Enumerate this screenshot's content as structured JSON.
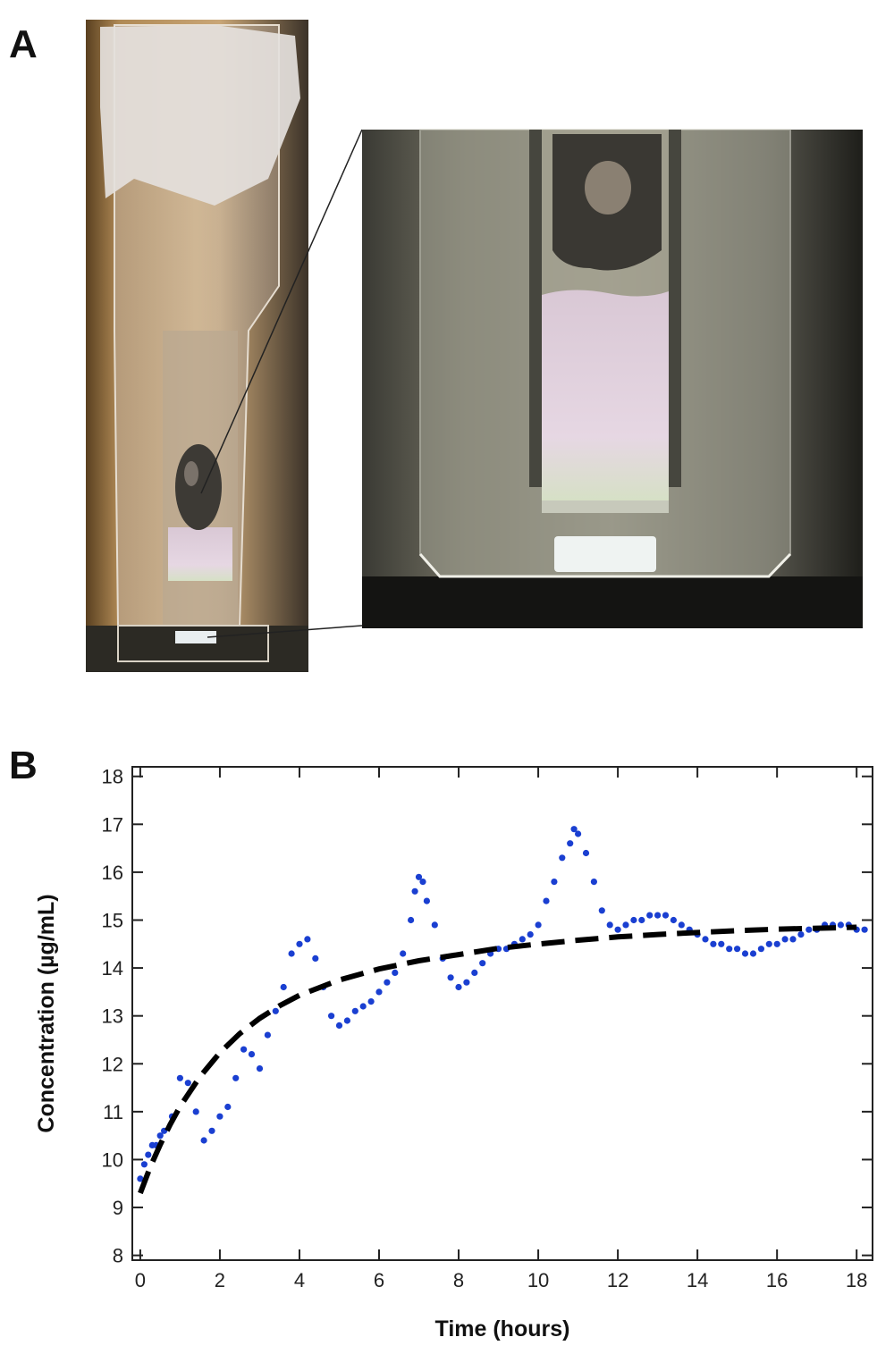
{
  "figure": {
    "panel_a_label": "A",
    "panel_b_label": "B"
  },
  "colors": {
    "point": "#1a3fd1",
    "fit": "#000000",
    "solution_tint": "#e8d6e4"
  },
  "chart_data": {
    "type": "scatter",
    "title": "",
    "xlabel": "Time (hours)",
    "ylabel": "Concentration (µg/mL)",
    "xlim": [
      -0.2,
      18.4
    ],
    "ylim": [
      7.9,
      18.2
    ],
    "xticks": [
      0,
      2,
      4,
      6,
      8,
      10,
      12,
      14,
      16,
      18
    ],
    "yticks": [
      8,
      9,
      10,
      11,
      12,
      13,
      14,
      15,
      16,
      17,
      18
    ],
    "grid": false,
    "legend": "none",
    "series": [
      {
        "kind": "points",
        "x": [
          0.0,
          0.1,
          0.2,
          0.3,
          0.4,
          0.5,
          0.6,
          0.8,
          1.0,
          1.2,
          1.4,
          1.6,
          1.8,
          2.0,
          2.2,
          2.4,
          2.6,
          2.8,
          3.0,
          3.2,
          3.4,
          3.6,
          3.8,
          4.0,
          4.2,
          4.4,
          4.6,
          4.8,
          5.0,
          5.2,
          5.4,
          5.6,
          5.8,
          6.0,
          6.2,
          6.4,
          6.6,
          6.8,
          6.9,
          7.0,
          7.1,
          7.2,
          7.4,
          7.6,
          7.8,
          8.0,
          8.2,
          8.4,
          8.6,
          8.8,
          9.0,
          9.2,
          9.4,
          9.6,
          9.8,
          10.0,
          10.2,
          10.4,
          10.6,
          10.8,
          10.9,
          11.0,
          11.2,
          11.4,
          11.6,
          11.8,
          12.0,
          12.2,
          12.4,
          12.6,
          12.8,
          13.0,
          13.2,
          13.4,
          13.6,
          13.8,
          14.0,
          14.2,
          14.4,
          14.6,
          14.8,
          15.0,
          15.2,
          15.4,
          15.6,
          15.8,
          16.0,
          16.2,
          16.4,
          16.6,
          16.8,
          17.0,
          17.2,
          17.4,
          17.6,
          17.8,
          18.0,
          18.2
        ],
        "y": [
          9.6,
          9.9,
          10.1,
          10.3,
          10.3,
          10.5,
          10.6,
          10.9,
          11.7,
          11.6,
          11.0,
          10.4,
          10.6,
          10.9,
          11.1,
          11.7,
          12.3,
          12.2,
          11.9,
          12.6,
          13.1,
          13.6,
          14.3,
          14.5,
          14.6,
          14.2,
          13.6,
          13.0,
          12.8,
          12.9,
          13.1,
          13.2,
          13.3,
          13.5,
          13.7,
          13.9,
          14.3,
          15.0,
          15.6,
          15.9,
          15.8,
          15.4,
          14.9,
          14.2,
          13.8,
          13.6,
          13.7,
          13.9,
          14.1,
          14.3,
          14.4,
          14.4,
          14.5,
          14.6,
          14.7,
          14.9,
          15.4,
          15.8,
          16.3,
          16.6,
          16.9,
          16.8,
          16.4,
          15.8,
          15.2,
          14.9,
          14.8,
          14.9,
          15.0,
          15.0,
          15.1,
          15.1,
          15.1,
          15.0,
          14.9,
          14.8,
          14.7,
          14.6,
          14.5,
          14.5,
          14.4,
          14.4,
          14.3,
          14.3,
          14.4,
          14.5,
          14.5,
          14.6,
          14.6,
          14.7,
          14.8,
          14.8,
          14.9,
          14.9,
          14.9,
          14.9,
          14.8,
          14.8
        ]
      },
      {
        "kind": "fit",
        "style": "dashed",
        "x": [
          0,
          0.25,
          0.5,
          0.75,
          1,
          1.5,
          2,
          2.5,
          3,
          3.5,
          4,
          5,
          6,
          7,
          8,
          9,
          10,
          11,
          12,
          13,
          14,
          15,
          16,
          17,
          18
        ],
        "y": [
          9.3,
          9.84,
          10.31,
          10.73,
          11.11,
          11.73,
          12.23,
          12.63,
          12.95,
          13.21,
          13.43,
          13.75,
          13.98,
          14.15,
          14.28,
          14.41,
          14.5,
          14.58,
          14.65,
          14.7,
          14.74,
          14.78,
          14.81,
          14.83,
          14.85
        ]
      }
    ]
  }
}
